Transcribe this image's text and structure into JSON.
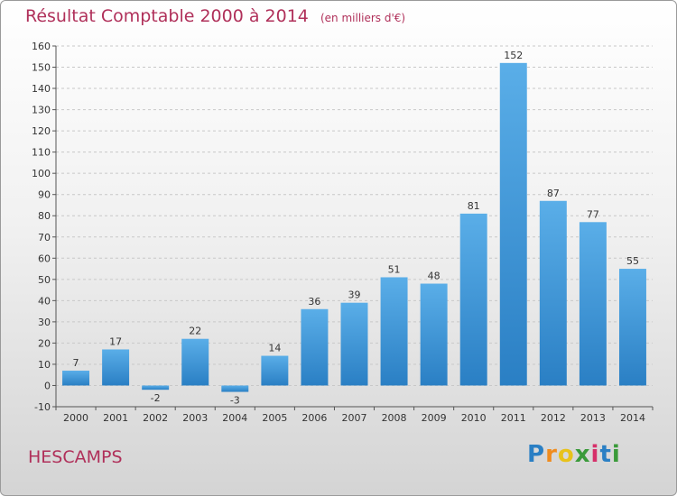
{
  "header": {
    "title": "Résultat Comptable 2000 à 2014",
    "unit": "(en milliers d'€)"
  },
  "footer": {
    "town": "HESCAMPS",
    "logo": "Proxiti"
  },
  "colors": {
    "accent": "#b0305a",
    "bar_top": "#5aaee8",
    "bar_bottom": "#2a7fc4"
  },
  "chart_data": {
    "type": "bar",
    "title": "Résultat Comptable 2000 à 2014",
    "subtitle": "(en milliers d'€)",
    "categories": [
      "2000",
      "2001",
      "2002",
      "2003",
      "2004",
      "2005",
      "2006",
      "2007",
      "2008",
      "2009",
      "2010",
      "2011",
      "2012",
      "2013",
      "2014"
    ],
    "values": [
      7,
      17,
      -2,
      22,
      -3,
      14,
      36,
      39,
      51,
      48,
      81,
      152,
      87,
      77,
      55
    ],
    "ylim": [
      -10,
      160
    ],
    "yticks": [
      -10,
      0,
      10,
      20,
      30,
      40,
      50,
      60,
      70,
      80,
      90,
      100,
      110,
      120,
      130,
      140,
      150,
      160
    ],
    "grid": "horizontal dashed",
    "legend": "none"
  }
}
